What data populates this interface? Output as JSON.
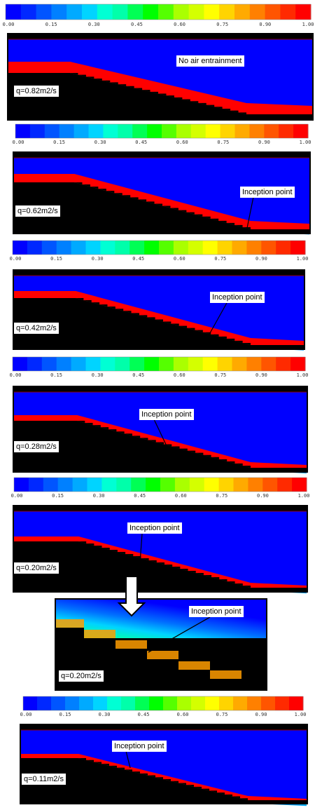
{
  "colorbar": {
    "colors": [
      "#0000ff",
      "#0028ff",
      "#0055ff",
      "#0080ff",
      "#00aaff",
      "#00d4ff",
      "#00ffd4",
      "#00ffaa",
      "#00ff55",
      "#00ff00",
      "#55ff00",
      "#aaff00",
      "#d4ff00",
      "#ffff00",
      "#ffd400",
      "#ffaa00",
      "#ff8000",
      "#ff5500",
      "#ff2a00",
      "#ff0000"
    ],
    "ticks": [
      "0.00",
      "0.15",
      "0.30",
      "0.45",
      "0.60",
      "0.75",
      "0.90",
      "1.00"
    ]
  },
  "panels": [
    {
      "id": "p1",
      "q_label": "q=0.82m2/s",
      "annotation": "No air entrainment"
    },
    {
      "id": "p2",
      "q_label": "q=0.62m2/s",
      "annotation": "Inception point"
    },
    {
      "id": "p3",
      "q_label": "q=0.42m2/s",
      "annotation": "Inception point"
    },
    {
      "id": "p4",
      "q_label": "q=0.28m2/s",
      "annotation": "Inception point"
    },
    {
      "id": "p5",
      "q_label": "q=0.20m2/s",
      "annotation": "Inception point"
    },
    {
      "id": "zoom",
      "q_label": "q=0.20m2/s",
      "annotation": "Inception point"
    },
    {
      "id": "p6",
      "q_label": "q=0.11m2/s",
      "annotation": "Inception point"
    }
  ]
}
